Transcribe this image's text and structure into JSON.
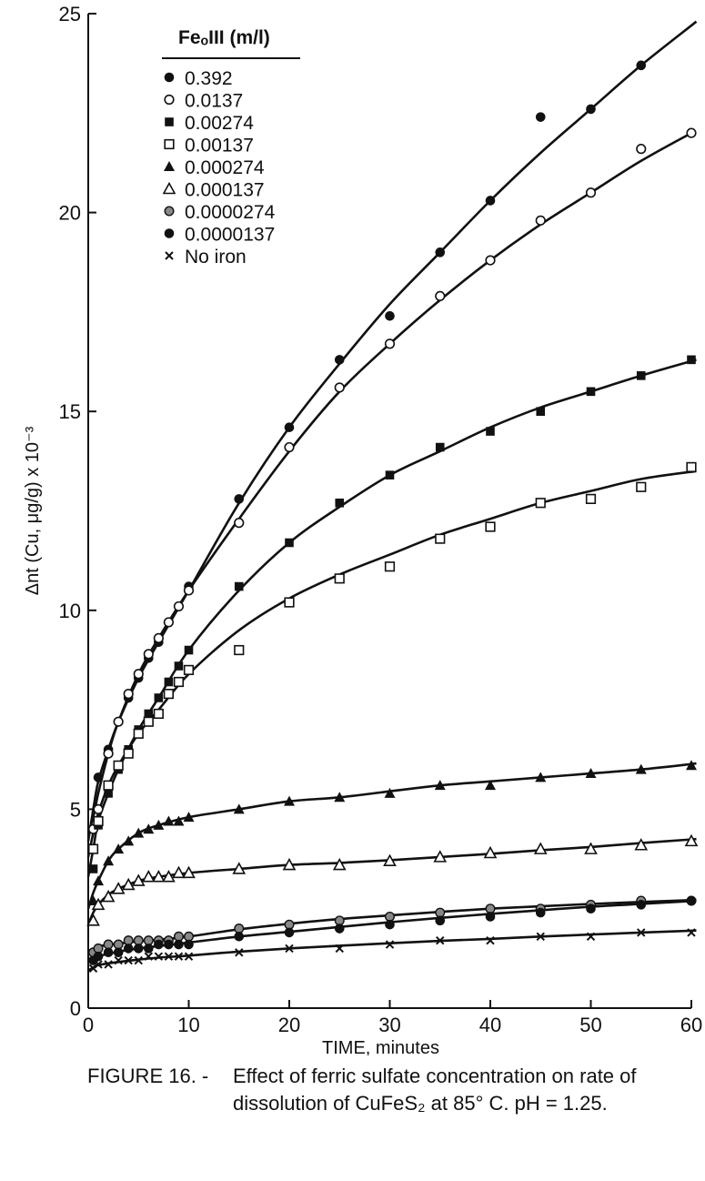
{
  "chart_data": {
    "type": "scatter",
    "xlabel": "TIME, minutes",
    "ylabel": "Δnt (Cu, μg/g) x 10⁻³",
    "xlim": [
      0,
      60
    ],
    "ylim": [
      0,
      25
    ],
    "xticks": [
      0,
      10,
      20,
      30,
      40,
      50,
      60
    ],
    "yticks": [
      0,
      5,
      10,
      15,
      20,
      25
    ],
    "grid": false,
    "legend_title": "FeₒIII (m/l)",
    "legend_position": "top-left",
    "series": [
      {
        "name": "0.392",
        "marker": "filled-circle",
        "x": [
          0.5,
          1,
          2,
          3,
          4,
          5,
          6,
          7,
          8,
          9,
          10,
          15,
          20,
          25,
          30,
          35,
          40,
          45,
          50,
          55
        ],
        "y": [
          4.5,
          5.8,
          6.5,
          7.2,
          7.8,
          8.3,
          8.8,
          9.2,
          9.7,
          10.1,
          10.6,
          12.8,
          14.6,
          16.3,
          17.4,
          19.0,
          20.3,
          22.4,
          22.6,
          23.7
        ]
      },
      {
        "name": "0.0137",
        "marker": "open-circle",
        "x": [
          0.5,
          1,
          2,
          3,
          4,
          5,
          6,
          7,
          8,
          9,
          10,
          15,
          20,
          25,
          30,
          35,
          40,
          45,
          50,
          55,
          60
        ],
        "y": [
          4.5,
          5.0,
          6.4,
          7.2,
          7.9,
          8.4,
          8.9,
          9.3,
          9.7,
          10.1,
          10.5,
          12.2,
          14.1,
          15.6,
          16.7,
          17.9,
          18.8,
          19.8,
          20.5,
          21.6,
          22.0
        ]
      },
      {
        "name": "0.00274",
        "marker": "filled-square",
        "x": [
          0.5,
          1,
          2,
          3,
          4,
          5,
          6,
          7,
          8,
          9,
          10,
          15,
          20,
          25,
          30,
          35,
          40,
          45,
          50,
          55,
          60
        ],
        "y": [
          3.5,
          4.6,
          5.4,
          6.0,
          6.5,
          7.0,
          7.4,
          7.8,
          8.2,
          8.6,
          9.0,
          10.6,
          11.7,
          12.7,
          13.4,
          14.1,
          14.5,
          15.0,
          15.5,
          15.9,
          16.3
        ]
      },
      {
        "name": "0.00137",
        "marker": "open-square",
        "x": [
          0.5,
          1,
          2,
          3,
          4,
          5,
          6,
          7,
          8,
          9,
          10,
          15,
          20,
          25,
          30,
          35,
          40,
          45,
          50,
          55,
          60
        ],
        "y": [
          4.0,
          4.7,
          5.6,
          6.1,
          6.4,
          6.9,
          7.2,
          7.4,
          7.9,
          8.2,
          8.5,
          9.0,
          10.2,
          10.8,
          11.1,
          11.8,
          12.1,
          12.7,
          12.8,
          13.1,
          13.6
        ]
      },
      {
        "name": "0.000274",
        "marker": "filled-triangle",
        "x": [
          0.5,
          1,
          2,
          3,
          4,
          5,
          6,
          7,
          8,
          9,
          10,
          15,
          20,
          25,
          30,
          35,
          40,
          45,
          50,
          55,
          60
        ],
        "y": [
          2.7,
          3.2,
          3.7,
          4.0,
          4.2,
          4.4,
          4.5,
          4.6,
          4.7,
          4.7,
          4.8,
          5.0,
          5.2,
          5.3,
          5.4,
          5.6,
          5.6,
          5.8,
          5.9,
          6.0,
          6.1
        ]
      },
      {
        "name": "0.000137",
        "marker": "open-triangle",
        "x": [
          0.5,
          1,
          2,
          3,
          4,
          5,
          6,
          7,
          8,
          9,
          10,
          15,
          20,
          25,
          30,
          35,
          40,
          45,
          50,
          55,
          60
        ],
        "y": [
          2.2,
          2.6,
          2.8,
          3.0,
          3.1,
          3.2,
          3.3,
          3.3,
          3.3,
          3.4,
          3.4,
          3.5,
          3.6,
          3.6,
          3.7,
          3.8,
          3.9,
          4.0,
          4.0,
          4.1,
          4.2
        ]
      },
      {
        "name": "0.0000274",
        "marker": "shaded-circle",
        "x": [
          0.5,
          1,
          2,
          3,
          4,
          5,
          6,
          7,
          8,
          9,
          10,
          15,
          20,
          25,
          30,
          35,
          40,
          45,
          50,
          55,
          60
        ],
        "y": [
          1.4,
          1.5,
          1.6,
          1.6,
          1.7,
          1.7,
          1.7,
          1.7,
          1.7,
          1.8,
          1.8,
          2.0,
          2.1,
          2.2,
          2.3,
          2.4,
          2.5,
          2.5,
          2.6,
          2.7,
          2.7
        ]
      },
      {
        "name": "0.0000137",
        "marker": "filled-circle",
        "x": [
          0.5,
          1,
          2,
          3,
          4,
          5,
          6,
          7,
          8,
          9,
          10,
          15,
          20,
          25,
          30,
          35,
          40,
          45,
          50,
          55,
          60
        ],
        "y": [
          1.2,
          1.3,
          1.4,
          1.4,
          1.5,
          1.5,
          1.5,
          1.6,
          1.6,
          1.6,
          1.6,
          1.8,
          1.9,
          2.0,
          2.1,
          2.2,
          2.3,
          2.4,
          2.5,
          2.6,
          2.7
        ]
      },
      {
        "name": "No iron",
        "marker": "cross",
        "x": [
          0.5,
          1,
          2,
          3,
          4,
          5,
          6,
          7,
          8,
          9,
          10,
          15,
          20,
          25,
          30,
          35,
          40,
          45,
          50,
          55,
          60
        ],
        "y": [
          1.0,
          1.1,
          1.1,
          1.2,
          1.2,
          1.2,
          1.3,
          1.3,
          1.3,
          1.3,
          1.3,
          1.4,
          1.5,
          1.5,
          1.6,
          1.7,
          1.7,
          1.8,
          1.8,
          1.9,
          1.9
        ]
      }
    ],
    "curves": [
      {
        "x": [
          0,
          0.5,
          1,
          2,
          3,
          5,
          7,
          10,
          15,
          20,
          25,
          30,
          35,
          40,
          45,
          50,
          55,
          60.5
        ],
        "y": [
          4.2,
          5.0,
          5.7,
          6.5,
          7.2,
          8.3,
          9.2,
          10.5,
          12.7,
          14.6,
          16.2,
          17.7,
          19.0,
          20.3,
          21.5,
          22.6,
          23.7,
          24.8
        ]
      },
      {
        "x": [
          0,
          0.5,
          1,
          2,
          3,
          5,
          7,
          10,
          15,
          20,
          25,
          30,
          35,
          40,
          45,
          50,
          55,
          60
        ],
        "y": [
          4.4,
          4.8,
          5.4,
          6.4,
          7.2,
          8.4,
          9.3,
          10.5,
          12.3,
          14.0,
          15.5,
          16.7,
          17.8,
          18.8,
          19.7,
          20.5,
          21.3,
          22.0
        ]
      },
      {
        "x": [
          0,
          0.5,
          1,
          2,
          3,
          5,
          7,
          10,
          15,
          20,
          25,
          30,
          35,
          40,
          45,
          50,
          55,
          60.5
        ],
        "y": [
          3.3,
          4.0,
          4.7,
          5.4,
          6.0,
          7.0,
          7.8,
          9.0,
          10.5,
          11.7,
          12.6,
          13.4,
          14.0,
          14.6,
          15.1,
          15.5,
          15.9,
          16.3
        ]
      },
      {
        "x": [
          0,
          0.5,
          1,
          2,
          3,
          5,
          7,
          10,
          15,
          20,
          25,
          30,
          35,
          40,
          45,
          50,
          55,
          60.5
        ],
        "y": [
          3.8,
          4.4,
          4.9,
          5.6,
          6.1,
          6.9,
          7.5,
          8.4,
          9.5,
          10.3,
          10.9,
          11.4,
          11.9,
          12.3,
          12.7,
          13.0,
          13.3,
          13.5
        ]
      },
      {
        "x": [
          0,
          0.5,
          1,
          2,
          3,
          5,
          7,
          10,
          15,
          20,
          25,
          30,
          35,
          40,
          45,
          50,
          55,
          60.5
        ],
        "y": [
          2.5,
          2.9,
          3.2,
          3.7,
          4.0,
          4.4,
          4.6,
          4.8,
          5.0,
          5.2,
          5.3,
          5.45,
          5.6,
          5.7,
          5.8,
          5.9,
          6.0,
          6.15
        ]
      },
      {
        "x": [
          0,
          0.5,
          1,
          2,
          3,
          5,
          7,
          10,
          15,
          20,
          25,
          30,
          35,
          40,
          45,
          50,
          55,
          60.5
        ],
        "y": [
          2.1,
          2.4,
          2.6,
          2.85,
          3.0,
          3.2,
          3.3,
          3.4,
          3.5,
          3.6,
          3.65,
          3.72,
          3.8,
          3.88,
          3.97,
          4.05,
          4.15,
          4.25
        ]
      },
      {
        "x": [
          0,
          0.5,
          1,
          3,
          5,
          7,
          10,
          15,
          20,
          25,
          30,
          35,
          40,
          45,
          50,
          55,
          60.5
        ],
        "y": [
          1.4,
          1.48,
          1.55,
          1.62,
          1.68,
          1.72,
          1.8,
          1.98,
          2.12,
          2.24,
          2.33,
          2.42,
          2.5,
          2.56,
          2.62,
          2.67,
          2.72
        ]
      },
      {
        "x": [
          0,
          0.5,
          1,
          3,
          5,
          7,
          10,
          15,
          20,
          25,
          30,
          35,
          40,
          45,
          50,
          55,
          60.5
        ],
        "y": [
          1.15,
          1.22,
          1.3,
          1.42,
          1.5,
          1.56,
          1.65,
          1.8,
          1.92,
          2.04,
          2.16,
          2.27,
          2.37,
          2.46,
          2.55,
          2.62,
          2.7
        ]
      },
      {
        "x": [
          0,
          0.5,
          1,
          3,
          5,
          7,
          10,
          15,
          20,
          25,
          30,
          35,
          40,
          45,
          50,
          55,
          60.5
        ],
        "y": [
          0.95,
          1.02,
          1.08,
          1.16,
          1.22,
          1.27,
          1.32,
          1.42,
          1.5,
          1.57,
          1.63,
          1.69,
          1.74,
          1.8,
          1.85,
          1.9,
          1.95
        ]
      }
    ]
  },
  "caption": {
    "label": "FIGURE 16. -",
    "text": "Effect of ferric sulfate concentration on rate of dissolution of CuFeS₂ at 85° C. pH = 1.25."
  }
}
